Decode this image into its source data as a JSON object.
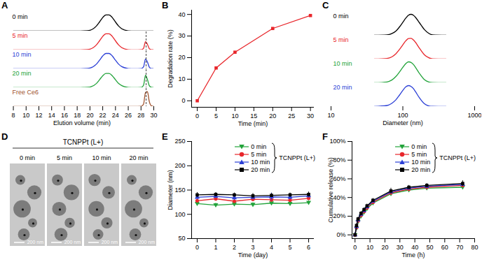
{
  "chart_data": [
    {
      "panel": "A",
      "type": "line",
      "xlabel": "Elution volume (min)",
      "x": [
        8,
        18,
        19,
        20,
        21,
        21.5,
        22,
        22.5,
        23,
        23.5,
        24,
        24.5,
        25,
        26,
        27,
        28,
        28.4,
        28.7,
        29,
        29.3,
        29.6,
        30
      ],
      "series": [
        {
          "name": "0 min",
          "color": "#000000",
          "values": [
            0,
            0,
            0.01,
            0.05,
            0.3,
            0.55,
            0.82,
            0.98,
            0.98,
            0.82,
            0.55,
            0.3,
            0.14,
            0.02,
            0,
            0,
            0,
            0,
            0,
            0,
            0,
            0
          ]
        },
        {
          "name": "5 min",
          "color": "#e8262b",
          "values": [
            0,
            0,
            0.01,
            0.05,
            0.3,
            0.55,
            0.82,
            0.98,
            0.98,
            0.82,
            0.55,
            0.3,
            0.14,
            0.02,
            0,
            0.01,
            0.1,
            0.5,
            0.35,
            0.08,
            0.02,
            0.01
          ]
        },
        {
          "name": "10 min",
          "color": "#2b3fd6",
          "values": [
            0,
            0,
            0.01,
            0.05,
            0.28,
            0.52,
            0.78,
            0.93,
            0.93,
            0.78,
            0.52,
            0.28,
            0.13,
            0.02,
            0,
            0.01,
            0.12,
            0.6,
            0.42,
            0.1,
            0.02,
            0.01
          ]
        },
        {
          "name": "20 min",
          "color": "#22a33a",
          "values": [
            0,
            0,
            0.01,
            0.04,
            0.25,
            0.48,
            0.72,
            0.86,
            0.86,
            0.72,
            0.48,
            0.25,
            0.12,
            0.02,
            0,
            0.01,
            0.15,
            0.75,
            0.5,
            0.12,
            0.03,
            0.01
          ]
        },
        {
          "name": "Free Ce6",
          "color": "#a0522d",
          "values": [
            0,
            0,
            0,
            0,
            0,
            0,
            0,
            0,
            0,
            0,
            0,
            0,
            0,
            0,
            0,
            0.01,
            0.15,
            0.85,
            0.9,
            0.3,
            0.05,
            0.01
          ]
        }
      ],
      "xlim": [
        7.5,
        30
      ],
      "xticks": [
        8,
        10,
        12,
        14,
        16,
        18,
        20,
        22,
        24,
        26,
        28,
        30
      ],
      "ylim": [
        0,
        1.1
      ],
      "tick_labels": "x",
      "reference_line_x": 28.8
    },
    {
      "panel": "B",
      "type": "line",
      "xlabel": "Time (min)",
      "ylabel": "Degradation rate (%)",
      "x": [
        0,
        5,
        10,
        20,
        30
      ],
      "values": [
        0,
        15.2,
        22.5,
        33.5,
        39.5
      ],
      "color": "#e8262b",
      "marker": "square",
      "xlim": [
        -1.5,
        31
      ],
      "xticks": [
        0,
        5,
        10,
        15,
        20,
        25,
        30
      ],
      "ylim": [
        -3,
        42
      ],
      "yticks": [
        0,
        10,
        20,
        30,
        40
      ]
    },
    {
      "panel": "C",
      "type": "line",
      "xlabel": "Diameter (nm)",
      "log": "x",
      "x": [
        40,
        60,
        70,
        80,
        90,
        100,
        110,
        120,
        130,
        140,
        150,
        170,
        200,
        230,
        260,
        400
      ],
      "series": [
        {
          "name": "0 min",
          "color": "#000000",
          "values": [
            0,
            0.02,
            0.08,
            0.2,
            0.4,
            0.62,
            0.82,
            0.96,
            1,
            0.96,
            0.86,
            0.6,
            0.27,
            0.09,
            0.02,
            0
          ]
        },
        {
          "name": "5 min",
          "color": "#e8262b",
          "values": [
            0,
            0.03,
            0.1,
            0.25,
            0.46,
            0.68,
            0.87,
            0.98,
            0.99,
            0.92,
            0.8,
            0.52,
            0.2,
            0.06,
            0.01,
            0
          ]
        },
        {
          "name": "10 min",
          "color": "#22a33a",
          "values": [
            0,
            0.04,
            0.13,
            0.3,
            0.52,
            0.74,
            0.92,
            1,
            0.97,
            0.88,
            0.74,
            0.45,
            0.15,
            0.04,
            0.01,
            0
          ]
        },
        {
          "name": "20 min",
          "color": "#2b3fd6",
          "values": [
            0,
            0.05,
            0.15,
            0.32,
            0.55,
            0.77,
            0.94,
            1,
            0.96,
            0.86,
            0.71,
            0.42,
            0.13,
            0.03,
            0.01,
            0
          ]
        }
      ],
      "xlim": [
        10,
        1000
      ],
      "xticks": [
        10,
        100,
        1000
      ],
      "ylim": [
        0,
        1.1
      ],
      "tick_labels": "x"
    },
    {
      "panel": "D",
      "type": "image",
      "title": "TCNPPt (L+)",
      "images": [
        "0 min",
        "5 min",
        "10 min",
        "20 min"
      ],
      "scale_bar": "200 nm"
    },
    {
      "panel": "E",
      "type": "line",
      "xlabel": "Time (day)",
      "ylabel": "Diameter (nm)",
      "x": [
        0,
        1,
        2,
        3,
        4,
        5,
        6
      ],
      "series": [
        {
          "name": "0 min",
          "color": "#22a33a",
          "marker": "triangle-down",
          "values": [
            122,
            119,
            121,
            120,
            123,
            122,
            124
          ],
          "errors": [
            4,
            4,
            4,
            4,
            4,
            4,
            4
          ]
        },
        {
          "name": "5 min",
          "color": "#e8262b",
          "marker": "circle",
          "values": [
            128,
            132,
            127,
            131,
            130,
            129,
            133
          ],
          "errors": [
            4,
            5,
            4,
            4,
            5,
            4,
            4
          ]
        },
        {
          "name": "10 min",
          "color": "#2b3fd6",
          "marker": "triangle",
          "values": [
            135,
            137,
            134,
            135,
            136,
            135,
            138
          ],
          "errors": [
            4,
            4,
            5,
            4,
            8,
            4,
            4
          ]
        },
        {
          "name": "20 min",
          "color": "#000000",
          "marker": "square",
          "values": [
            140,
            141,
            140,
            138,
            139,
            140,
            141
          ],
          "errors": [
            5,
            4,
            4,
            5,
            4,
            4,
            5
          ]
        }
      ],
      "xlim": [
        -0.3,
        6.3
      ],
      "xticks": [
        0,
        1,
        2,
        3,
        4,
        5,
        6
      ],
      "ylim": [
        50,
        250
      ],
      "yticks": [
        50,
        100,
        150,
        200,
        250
      ],
      "legend": "right",
      "legend_title": "TCNPPt (L+)"
    },
    {
      "panel": "F",
      "type": "line",
      "xlabel": "Time (h)",
      "ylabel": "Cumulative release (%)",
      "x": [
        0,
        1,
        2,
        4,
        6,
        8,
        12,
        24,
        36,
        48,
        72
      ],
      "series": [
        {
          "name": "0 min",
          "color": "#22a33a",
          "marker": "triangle-down",
          "values": [
            0,
            7,
            14,
            20,
            24,
            28,
            34,
            44,
            48,
            50,
            51
          ],
          "errors": [
            1,
            2,
            2,
            2,
            2,
            2,
            2,
            2,
            2,
            2,
            2
          ]
        },
        {
          "name": "5 min",
          "color": "#e8262b",
          "marker": "circle",
          "values": [
            0,
            8,
            15,
            21,
            25,
            29,
            35,
            45,
            49,
            51,
            53
          ],
          "errors": [
            1,
            2,
            2,
            2,
            2,
            2,
            2,
            2,
            2,
            2,
            2
          ]
        },
        {
          "name": "10 min",
          "color": "#2b3fd6",
          "marker": "triangle",
          "values": [
            0,
            9,
            16,
            22,
            26,
            30,
            36,
            46,
            50,
            52,
            54
          ],
          "errors": [
            1,
            2,
            2,
            2,
            2,
            2,
            2,
            2,
            2,
            2,
            2
          ]
        },
        {
          "name": "20 min",
          "color": "#000000",
          "marker": "square",
          "values": [
            0,
            10,
            17,
            23,
            27,
            31,
            37,
            47,
            51,
            53,
            55
          ],
          "errors": [
            1,
            2,
            2,
            2,
            2,
            2,
            2,
            3,
            2,
            2,
            3
          ]
        }
      ],
      "xlim": [
        -2,
        80
      ],
      "xticks": [
        0,
        10,
        20,
        30,
        40,
        50,
        60,
        70,
        80
      ],
      "ylim": [
        -4,
        100
      ],
      "yticks": [
        {
          "value": 0,
          "label": "0%"
        },
        {
          "value": 20,
          "label": "20%"
        },
        {
          "value": 40,
          "label": "40%"
        },
        {
          "value": 60,
          "label": "60%"
        },
        {
          "value": 80,
          "label": "80%"
        },
        {
          "value": 100,
          "label": "100%"
        }
      ],
      "legend": "right",
      "legend_title": "TCNPPt (L+)"
    }
  ]
}
